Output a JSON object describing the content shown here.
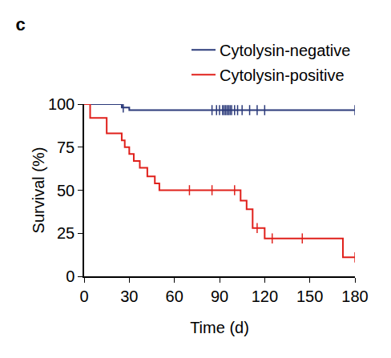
{
  "chart_data": {
    "type": "line",
    "title": "c",
    "x_label": "Time (d)",
    "y_label": "Survival (%)",
    "xlim": [
      0,
      180
    ],
    "xticks": [
      0,
      30,
      60,
      90,
      120,
      150,
      180
    ],
    "ylim": [
      0,
      100
    ],
    "yticks": [
      0,
      25,
      50,
      75,
      100
    ],
    "grid": false,
    "legend": "top right",
    "line_style": "step",
    "series": [
      {
        "name": "Cytolysin-negative",
        "color": "#2b3a7a",
        "x": [
          0,
          25,
          30,
          180
        ],
        "values": [
          100,
          98,
          96.5,
          96.5
        ],
        "censored": {
          "x": [
            26,
            85,
            88,
            90,
            92,
            93,
            94,
            95,
            96,
            97,
            98,
            100,
            102,
            105,
            110,
            115,
            120,
            180
          ],
          "values": [
            98,
            96.5,
            96.5,
            96.5,
            96.5,
            96.5,
            96.5,
            96.5,
            96.5,
            96.5,
            96.5,
            96.5,
            96.5,
            96.5,
            96.5,
            96.5,
            96.5,
            96.5
          ]
        }
      },
      {
        "name": "Cytolysin-positive",
        "color": "#e0201b",
        "x": [
          0,
          4,
          15,
          25,
          27,
          30,
          33,
          37,
          42,
          47,
          50,
          104,
          108,
          112,
          120,
          172,
          180
        ],
        "values": [
          100,
          92,
          83,
          79,
          75,
          71,
          67,
          63,
          58,
          54,
          50,
          44,
          39,
          28,
          22,
          11,
          11
        ],
        "censored": {
          "x": [
            70,
            85,
            100,
            115,
            125,
            145,
            180
          ],
          "values": [
            50,
            50,
            50,
            28,
            22,
            22,
            11
          ]
        }
      }
    ]
  }
}
